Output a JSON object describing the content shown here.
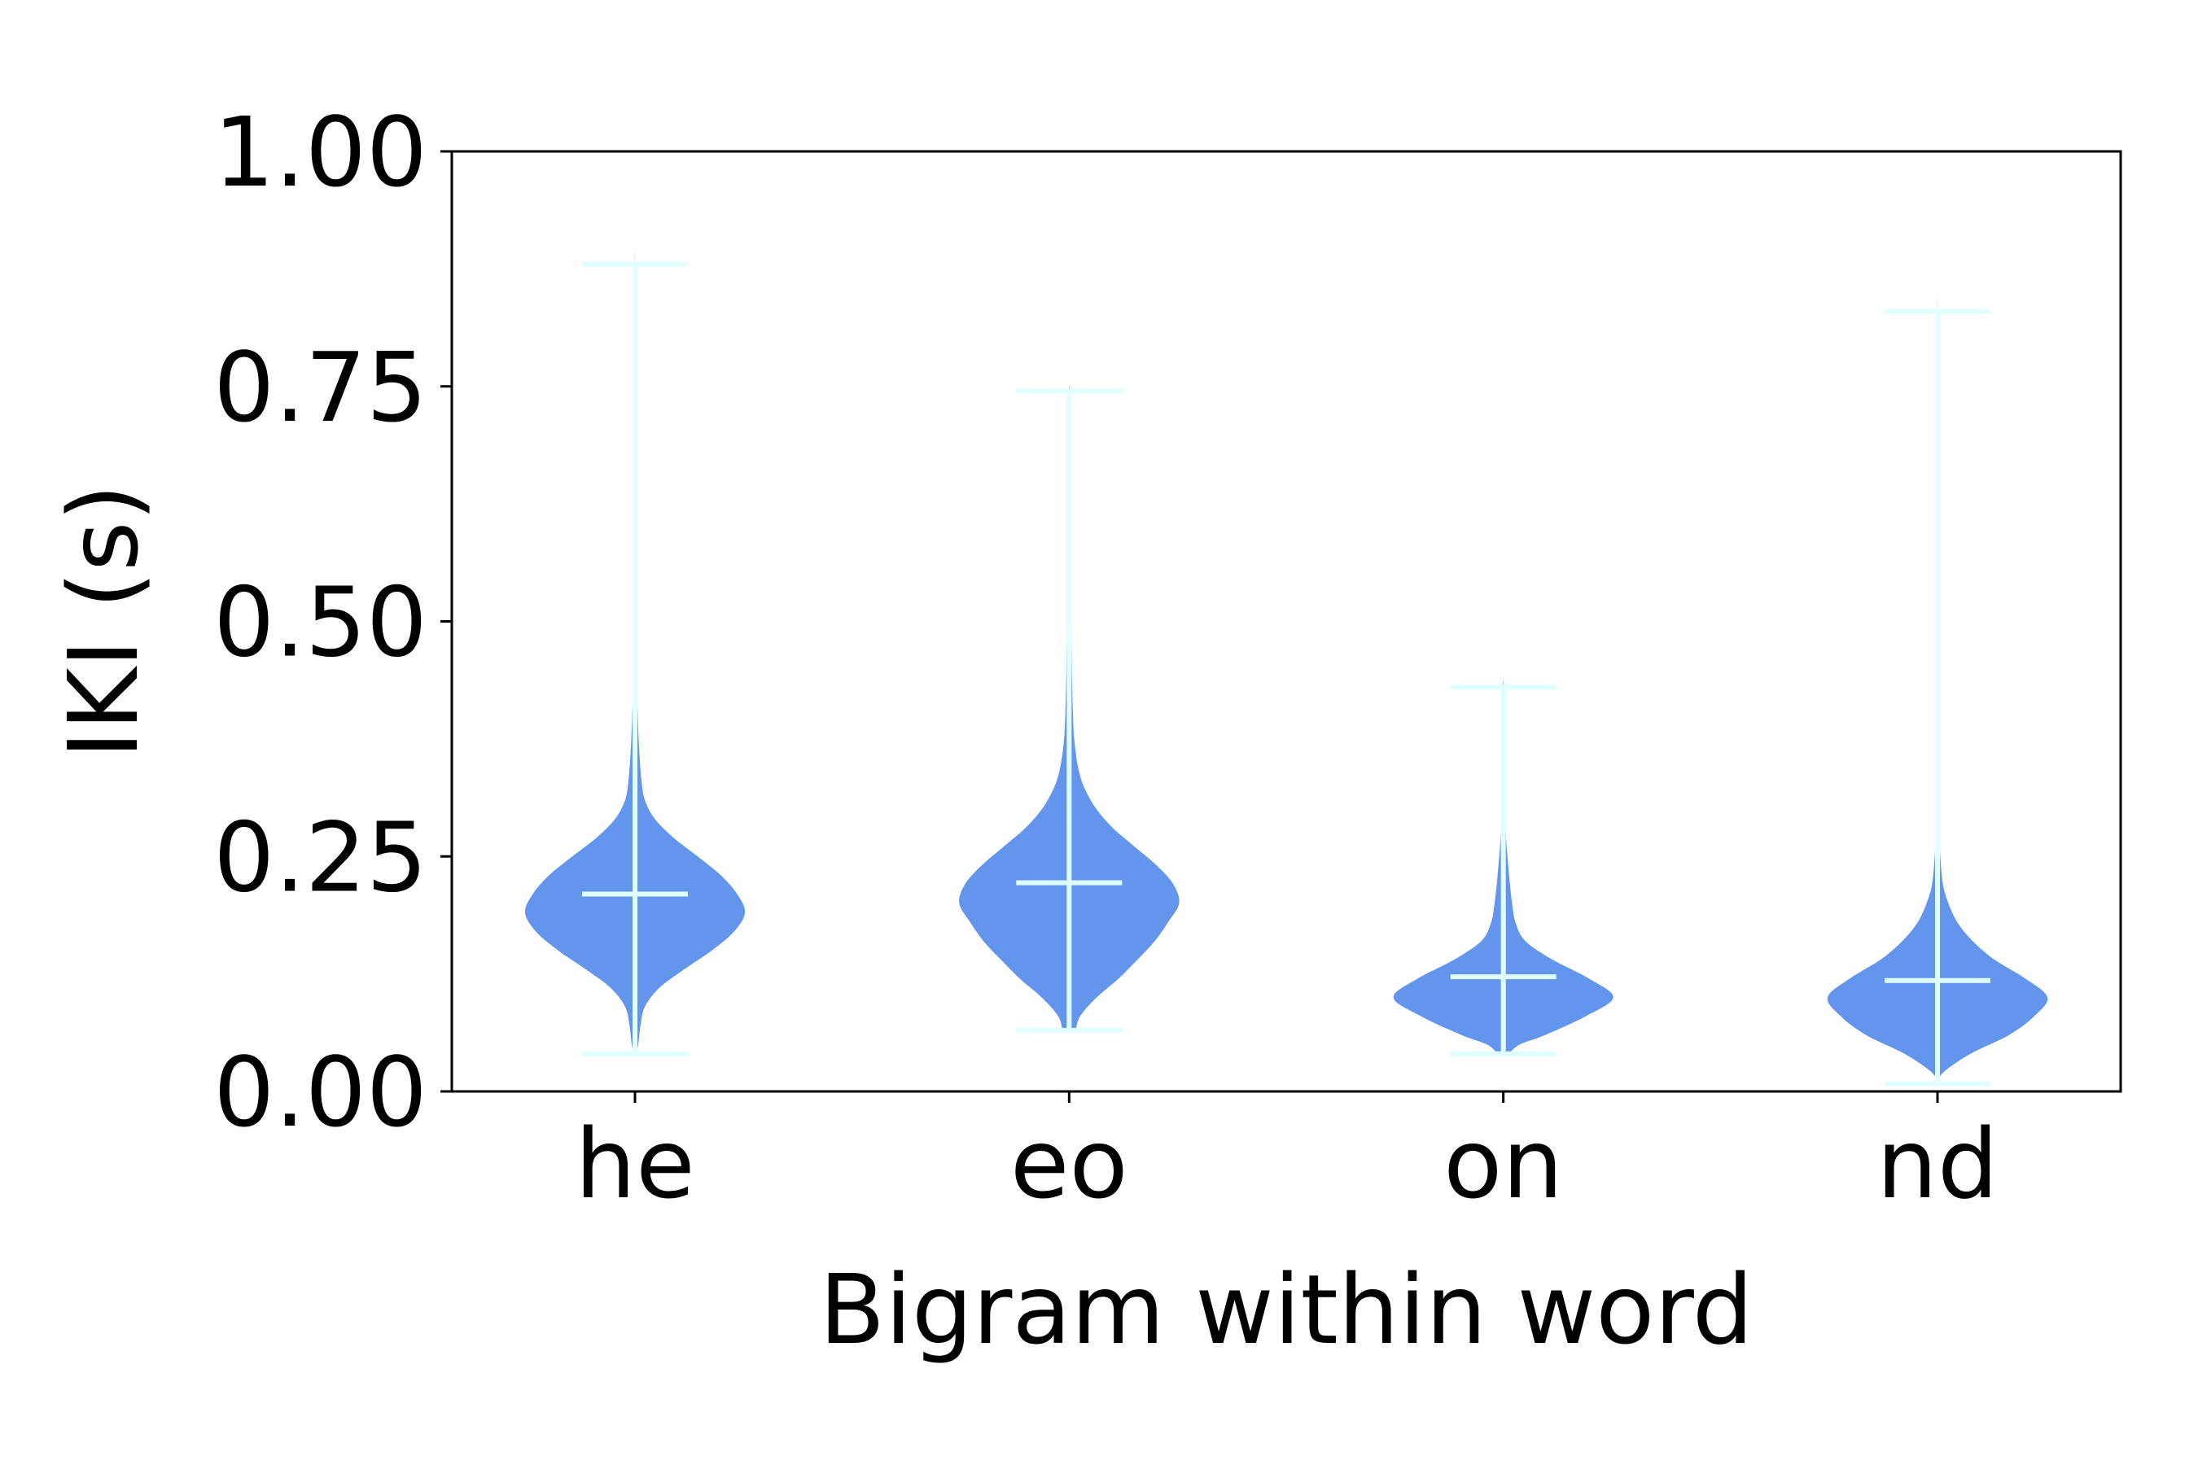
{
  "chart_data": {
    "type": "violin",
    "title": "",
    "xlabel": "Bigram within word",
    "ylabel": "IKI (s)",
    "ylim": [
      0,
      1
    ],
    "yticks": [
      "0.00",
      "0.25",
      "0.50",
      "0.75",
      "1.00"
    ],
    "yticks_values": [
      0,
      0.25,
      0.5,
      0.75,
      1.0
    ],
    "categories": [
      "he",
      "eo",
      "on",
      "nd"
    ],
    "violins": [
      {
        "category": "he",
        "min": 0.04,
        "max": 0.88,
        "mean": 0.21,
        "density": [
          [
            0.04,
            0.01
          ],
          [
            0.05,
            0.03
          ],
          [
            0.07,
            0.05
          ],
          [
            0.09,
            0.09
          ],
          [
            0.11,
            0.22
          ],
          [
            0.13,
            0.45
          ],
          [
            0.15,
            0.7
          ],
          [
            0.17,
            0.9
          ],
          [
            0.19,
            1.0
          ],
          [
            0.21,
            0.93
          ],
          [
            0.23,
            0.78
          ],
          [
            0.25,
            0.57
          ],
          [
            0.27,
            0.35
          ],
          [
            0.29,
            0.18
          ],
          [
            0.31,
            0.09
          ],
          [
            0.33,
            0.06
          ],
          [
            0.36,
            0.04
          ],
          [
            0.4,
            0.025
          ],
          [
            0.45,
            0.015
          ],
          [
            0.5,
            0.01
          ],
          [
            0.55,
            0.006
          ],
          [
            0.65,
            0.003
          ],
          [
            0.75,
            0.002
          ],
          [
            0.88,
            0.001
          ]
        ]
      },
      {
        "category": "eo",
        "min": 0.065,
        "max": 0.745,
        "mean": 0.222,
        "density": [
          [
            0.065,
            0.06
          ],
          [
            0.08,
            0.1
          ],
          [
            0.1,
            0.25
          ],
          [
            0.12,
            0.45
          ],
          [
            0.14,
            0.62
          ],
          [
            0.16,
            0.78
          ],
          [
            0.18,
            0.9
          ],
          [
            0.2,
            1.0
          ],
          [
            0.22,
            0.95
          ],
          [
            0.24,
            0.8
          ],
          [
            0.26,
            0.6
          ],
          [
            0.28,
            0.4
          ],
          [
            0.3,
            0.25
          ],
          [
            0.32,
            0.15
          ],
          [
            0.34,
            0.09
          ],
          [
            0.37,
            0.05
          ],
          [
            0.4,
            0.035
          ],
          [
            0.45,
            0.025
          ],
          [
            0.5,
            0.02
          ],
          [
            0.55,
            0.015
          ],
          [
            0.6,
            0.01
          ],
          [
            0.65,
            0.008
          ],
          [
            0.7,
            0.005
          ],
          [
            0.745,
            0.003
          ]
        ]
      },
      {
        "category": "on",
        "min": 0.04,
        "max": 0.43,
        "mean": 0.122,
        "density": [
          [
            0.04,
            0.05
          ],
          [
            0.05,
            0.15
          ],
          [
            0.06,
            0.38
          ],
          [
            0.08,
            0.75
          ],
          [
            0.1,
            1.0
          ],
          [
            0.12,
            0.78
          ],
          [
            0.14,
            0.45
          ],
          [
            0.16,
            0.2
          ],
          [
            0.18,
            0.11
          ],
          [
            0.2,
            0.08
          ],
          [
            0.22,
            0.06
          ],
          [
            0.24,
            0.045
          ],
          [
            0.26,
            0.03
          ],
          [
            0.28,
            0.02
          ],
          [
            0.3,
            0.014
          ],
          [
            0.33,
            0.009
          ],
          [
            0.37,
            0.006
          ],
          [
            0.43,
            0.003
          ]
        ]
      },
      {
        "category": "nd",
        "min": 0.008,
        "max": 0.83,
        "mean": 0.118,
        "density": [
          [
            0.008,
            0.005
          ],
          [
            0.02,
            0.05
          ],
          [
            0.04,
            0.3
          ],
          [
            0.06,
            0.65
          ],
          [
            0.08,
            0.88
          ],
          [
            0.1,
            1.0
          ],
          [
            0.12,
            0.8
          ],
          [
            0.14,
            0.52
          ],
          [
            0.16,
            0.32
          ],
          [
            0.18,
            0.18
          ],
          [
            0.2,
            0.1
          ],
          [
            0.22,
            0.05
          ],
          [
            0.25,
            0.025
          ],
          [
            0.28,
            0.015
          ],
          [
            0.32,
            0.009
          ],
          [
            0.4,
            0.005
          ],
          [
            0.5,
            0.004
          ],
          [
            0.6,
            0.003
          ],
          [
            0.7,
            0.002
          ],
          [
            0.83,
            0.001
          ]
        ]
      }
    ],
    "fill_color": "#6495ed",
    "line_color": "#e0ffff",
    "grid": false,
    "legend": "none"
  }
}
